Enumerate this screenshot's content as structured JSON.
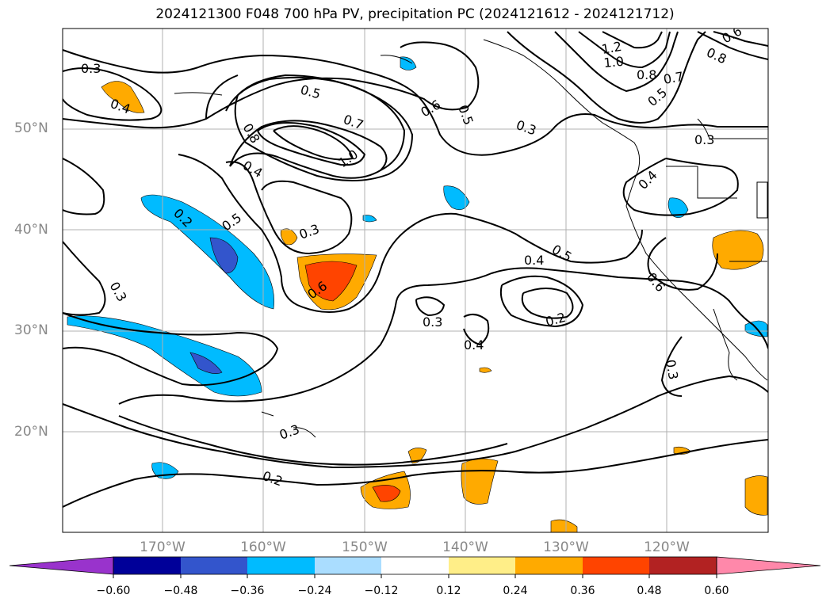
{
  "title": "2024121300 F048 700 hPa PV, precipitation PC (2024121612 - 2024121712)",
  "lat_labels": [
    "50°N",
    "40°N",
    "30°N",
    "20°N"
  ],
  "lon_labels": [
    "170°W",
    "160°W",
    "150°W",
    "140°W",
    "130°W",
    "120°W"
  ],
  "colorbar": {
    "ticks": [
      "−0.60",
      "−0.48",
      "−0.36",
      "−0.24",
      "−0.12",
      "0.12",
      "0.24",
      "0.36",
      "0.48",
      "0.60"
    ],
    "colors": [
      "#9933cc",
      "#000099",
      "#3355cc",
      "#00bbff",
      "#aaddff",
      "#ffffff",
      "#ffee88",
      "#ffaa00",
      "#ff4400",
      "#b22222",
      "#ff88aa"
    ]
  },
  "contour_labels": [
    "0.3",
    "0.4",
    "0.5",
    "0.7",
    "0.6",
    "0.5",
    "1.2",
    "1.0",
    "0.8",
    "0.7",
    "0.5",
    "0.8",
    "0.6",
    "0.8",
    "0.4",
    "1.0",
    "0.3",
    "0.3",
    "0.4",
    "0.2",
    "0.5",
    "0.3",
    "0.6",
    "0.4",
    "0.5",
    "0.6",
    "0.3",
    "0.3",
    "0.4",
    "0.2",
    "0.3",
    "0.3",
    "0.2"
  ],
  "palette": {
    "grid": "#b0b0b0",
    "contour": "#000000",
    "axis_text": "#888888"
  }
}
